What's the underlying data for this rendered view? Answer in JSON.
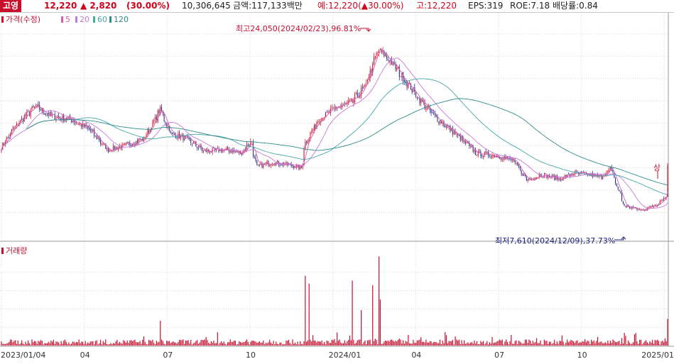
{
  "header": {
    "name": "고영",
    "price": "12,220",
    "change": "▲ 2,820",
    "change_pct": "(30.00%)",
    "volume": "10,306,645",
    "amount": "금액:117,133백만",
    "expected": "예:12,220(▲30.00%)",
    "high": "고:12,220",
    "eps": "EPS:319",
    "roe": "ROE:7.18",
    "dividend": "배당률:0.84"
  },
  "colors": {
    "up": "#d0021b",
    "down": "#1a237e",
    "ma5": "#d65db1",
    "ma20": "#c878d8",
    "ma60": "#47a6a8",
    "ma120": "#2e8b8b",
    "grid": "#d8d8d8",
    "volume": "#c8102e"
  },
  "legend": {
    "price_label": "가격(수정)",
    "ma": [
      "5",
      "20",
      "60",
      "120"
    ],
    "volume_label": "거래량"
  },
  "chart_data": {
    "type": "candlestick",
    "annotations": {
      "high": "최고24,050(2024/02/23),96.81%",
      "low": "최저7,610(2024/12/09),37.73%",
      "limit_up": "상"
    },
    "x_tick_labels": [
      "2023/01/04",
      "04",
      "07",
      "10",
      "2024/01",
      "04",
      "07",
      "10",
      "2025/01"
    ],
    "price_anchors": [
      [
        "2023-01-04",
        13900
      ],
      [
        "2023-01-20",
        15800
      ],
      [
        "2023-02-10",
        17500
      ],
      [
        "2023-03-01",
        16600
      ],
      [
        "2023-03-20",
        16400
      ],
      [
        "2023-04-10",
        15500
      ],
      [
        "2023-05-01",
        13600
      ],
      [
        "2023-05-20",
        14000
      ],
      [
        "2023-06-10",
        14600
      ],
      [
        "2023-06-28",
        17200
      ],
      [
        "2023-07-10",
        15000
      ],
      [
        "2023-07-25",
        14700
      ],
      [
        "2023-08-15",
        13500
      ],
      [
        "2023-09-10",
        13600
      ],
      [
        "2023-09-25",
        13300
      ],
      [
        "2023-10-06",
        14400
      ],
      [
        "2023-10-12",
        12100
      ],
      [
        "2023-10-30",
        12500
      ],
      [
        "2023-11-20",
        12200
      ],
      [
        "2023-11-30",
        12000
      ],
      [
        "2023-12-05",
        14300
      ],
      [
        "2023-12-20",
        16400
      ],
      [
        "2024-01-08",
        17400
      ],
      [
        "2024-01-25",
        17900
      ],
      [
        "2024-02-08",
        19200
      ],
      [
        "2024-02-23",
        22600
      ],
      [
        "2024-03-05",
        21800
      ],
      [
        "2024-03-20",
        20200
      ],
      [
        "2024-04-08",
        18200
      ],
      [
        "2024-04-25",
        16600
      ],
      [
        "2024-05-20",
        14900
      ],
      [
        "2024-06-10",
        13300
      ],
      [
        "2024-07-01",
        13100
      ],
      [
        "2024-07-20",
        12700
      ],
      [
        "2024-08-05",
        10900
      ],
      [
        "2024-08-20",
        11400
      ],
      [
        "2024-09-10",
        11000
      ],
      [
        "2024-09-25",
        11500
      ],
      [
        "2024-10-10",
        11400
      ],
      [
        "2024-10-25",
        11200
      ],
      [
        "2024-11-05",
        11900
      ],
      [
        "2024-11-20",
        8600
      ],
      [
        "2024-12-09",
        8200
      ],
      [
        "2024-12-25",
        8700
      ],
      [
        "2025-01-03",
        9300
      ],
      [
        "2025-01-06",
        9400
      ]
    ],
    "last_close": 12220,
    "volume_spikes": [
      [
        "2023-06-28",
        4200000
      ],
      [
        "2023-12-05",
        11800000
      ],
      [
        "2023-12-08",
        10500000
      ],
      [
        "2024-01-25",
        11000000
      ],
      [
        "2024-02-05",
        6000000
      ],
      [
        "2024-02-16",
        10200000
      ],
      [
        "2024-02-23",
        15100000
      ],
      [
        "2024-02-26",
        7800000
      ],
      [
        "2025-01-07",
        4500000
      ]
    ],
    "y_price_range": [
      5800,
      24500
    ],
    "y_volume_range": [
      0,
      15500000
    ],
    "date_range": [
      "2023-01-04",
      "2025-01-07"
    ],
    "grid": true
  }
}
